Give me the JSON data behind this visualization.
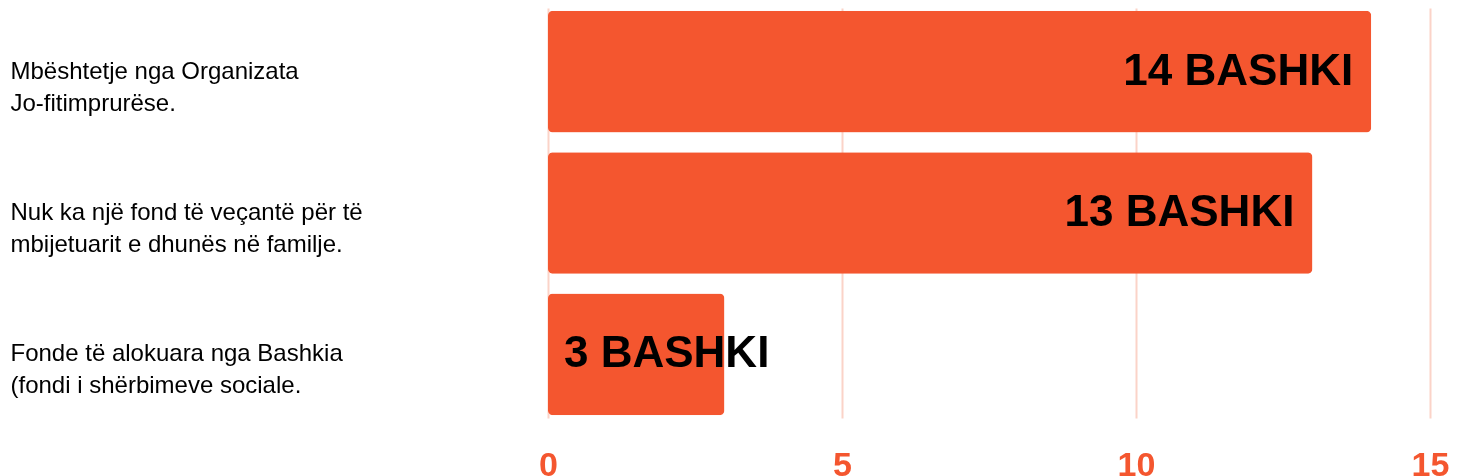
{
  "chart_data": {
    "type": "bar",
    "orientation": "horizontal",
    "categories": [
      "Mbështetje nga Organizata Jo-fitimprurëse.",
      "Nuk ka një fond të veçantë për të mbijetuarit e dhunës në familje.",
      "Fonde të alokuara nga Bashkia (fondi i shërbimeve sociale."
    ],
    "values": [
      14,
      13,
      3
    ],
    "value_labels": [
      "14 BASHKI",
      "13 BASHKI",
      "3 BASHKI"
    ],
    "color": "#f4562f",
    "xlim": [
      0,
      15
    ],
    "xticks": [
      0,
      5,
      10,
      15
    ],
    "grid": "x"
  }
}
